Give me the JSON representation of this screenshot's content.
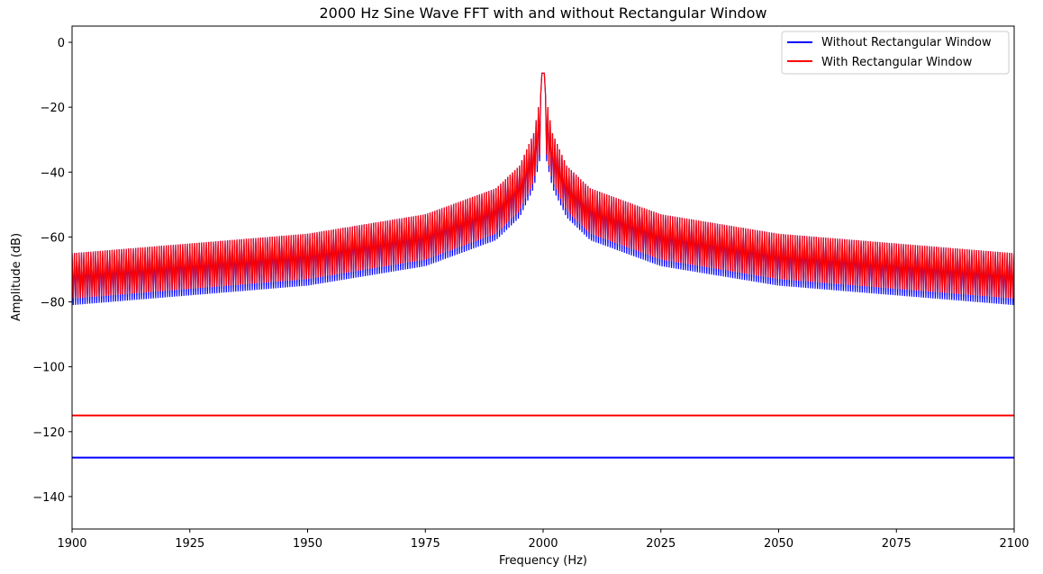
{
  "chart_data": {
    "type": "line",
    "title": "2000 Hz Sine Wave FFT with and without Rectangular Window",
    "xlabel": "Frequency (Hz)",
    "ylabel": "Amplitude (dB)",
    "xlim": [
      1900,
      2100
    ],
    "ylim": [
      -150,
      5
    ],
    "xticks": [
      1900,
      1925,
      1950,
      1975,
      2000,
      2025,
      2050,
      2075,
      2100
    ],
    "yticks": [
      0,
      -20,
      -40,
      -60,
      -80,
      -100,
      -120,
      -140
    ],
    "xtick_labels": [
      "1900",
      "1925",
      "1950",
      "1975",
      "2000",
      "2025",
      "2050",
      "2075",
      "2100"
    ],
    "ytick_labels": [
      "0",
      "−20",
      "−40",
      "−60",
      "−80",
      "−100",
      "−120",
      "−140"
    ],
    "grid": false,
    "legend_position": "top-right",
    "peak_frequency": 2000,
    "series": [
      {
        "name": "Without Rectangular Window",
        "color": "#0000ff",
        "peak": -9.5,
        "envelope_upper": [
          [
            1900,
            -65
          ],
          [
            1950,
            -59
          ],
          [
            1975,
            -53
          ],
          [
            1990,
            -45
          ],
          [
            1995,
            -38
          ],
          [
            1998,
            -28
          ],
          [
            1999.5,
            -16
          ],
          [
            2000,
            -9.5
          ],
          [
            2000.5,
            -16
          ],
          [
            2002,
            -28
          ],
          [
            2005,
            -38
          ],
          [
            2010,
            -45
          ],
          [
            2025,
            -53
          ],
          [
            2050,
            -59
          ],
          [
            2100,
            -65
          ]
        ],
        "envelope_lower": [
          [
            1900,
            -81
          ],
          [
            1950,
            -75
          ],
          [
            1975,
            -69
          ],
          [
            1990,
            -61
          ],
          [
            1995,
            -54
          ],
          [
            1998,
            -45
          ],
          [
            1999.5,
            -35
          ],
          [
            2000,
            -25
          ],
          [
            2000.5,
            -35
          ],
          [
            2002,
            -45
          ],
          [
            2005,
            -54
          ],
          [
            2010,
            -61
          ],
          [
            2025,
            -69
          ],
          [
            2050,
            -75
          ],
          [
            2100,
            -81
          ]
        ],
        "noise_floor": -128
      },
      {
        "name": "With Rectangular Window",
        "color": "#ff0000",
        "peak": -9.5,
        "envelope_upper": [
          [
            1900,
            -65
          ],
          [
            1950,
            -59
          ],
          [
            1975,
            -53
          ],
          [
            1990,
            -45
          ],
          [
            1995,
            -38
          ],
          [
            1998,
            -28
          ],
          [
            1999.5,
            -16
          ],
          [
            2000,
            -9.5
          ],
          [
            2000.5,
            -16
          ],
          [
            2002,
            -28
          ],
          [
            2005,
            -38
          ],
          [
            2010,
            -45
          ],
          [
            2025,
            -53
          ],
          [
            2050,
            -59
          ],
          [
            2100,
            -65
          ]
        ],
        "envelope_lower": [
          [
            1900,
            -79
          ],
          [
            1950,
            -73
          ],
          [
            1975,
            -67
          ],
          [
            1990,
            -59
          ],
          [
            1995,
            -52
          ],
          [
            1998,
            -43
          ],
          [
            1999.5,
            -33
          ],
          [
            2000,
            -23
          ],
          [
            2000.5,
            -33
          ],
          [
            2002,
            -43
          ],
          [
            2005,
            -52
          ],
          [
            2010,
            -59
          ],
          [
            2025,
            -67
          ],
          [
            2050,
            -73
          ],
          [
            2100,
            -79
          ]
        ],
        "noise_floor": -115
      }
    ]
  }
}
